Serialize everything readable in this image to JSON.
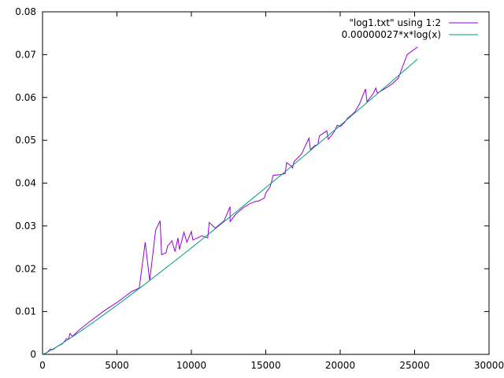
{
  "chart_data": {
    "type": "line",
    "title": "",
    "xlabel": "",
    "ylabel": "",
    "xlim": [
      0,
      30000
    ],
    "ylim": [
      0,
      0.08
    ],
    "grid": false,
    "legend_position": "top-right",
    "x_ticks": [
      {
        "value": 0,
        "label": "0"
      },
      {
        "value": 5000,
        "label": "5000"
      },
      {
        "value": 10000,
        "label": "10000"
      },
      {
        "value": 15000,
        "label": "15000"
      },
      {
        "value": 20000,
        "label": "20000"
      },
      {
        "value": 25000,
        "label": "25000"
      },
      {
        "value": 30000,
        "label": "30000"
      }
    ],
    "y_ticks": [
      {
        "value": 0,
        "label": "0"
      },
      {
        "value": 0.01,
        "label": "0.01"
      },
      {
        "value": 0.02,
        "label": "0.02"
      },
      {
        "value": 0.03,
        "label": "0.03"
      },
      {
        "value": 0.04,
        "label": "0.04"
      },
      {
        "value": 0.05,
        "label": "0.05"
      },
      {
        "value": 0.06,
        "label": "0.06"
      },
      {
        "value": 0.07,
        "label": "0.07"
      },
      {
        "value": 0.08,
        "label": "0.08"
      }
    ],
    "series": [
      {
        "name": "\"log1.txt\" using 1:2",
        "color": "#9400d3",
        "kind": "data",
        "points": [
          [
            0,
            0.0
          ],
          [
            300,
            0.0004
          ],
          [
            500,
            0.0012
          ],
          [
            700,
            0.0011
          ],
          [
            1000,
            0.0019
          ],
          [
            1300,
            0.0024
          ],
          [
            1500,
            0.0031
          ],
          [
            1600,
            0.0037
          ],
          [
            1750,
            0.0036
          ],
          [
            1850,
            0.0049
          ],
          [
            2000,
            0.0042
          ],
          [
            2500,
            0.0058
          ],
          [
            3000,
            0.0072
          ],
          [
            3500,
            0.0085
          ],
          [
            4000,
            0.0098
          ],
          [
            4500,
            0.011
          ],
          [
            5000,
            0.0121
          ],
          [
            5500,
            0.0134
          ],
          [
            6000,
            0.0147
          ],
          [
            6500,
            0.0155
          ],
          [
            6900,
            0.0262
          ],
          [
            7200,
            0.0172
          ],
          [
            7600,
            0.029
          ],
          [
            7900,
            0.0312
          ],
          [
            8000,
            0.0233
          ],
          [
            8300,
            0.0237
          ],
          [
            8400,
            0.0253
          ],
          [
            8700,
            0.0265
          ],
          [
            8900,
            0.024
          ],
          [
            9100,
            0.0272
          ],
          [
            9200,
            0.0245
          ],
          [
            9500,
            0.0285
          ],
          [
            9700,
            0.0262
          ],
          [
            10000,
            0.0287
          ],
          [
            10100,
            0.0267
          ],
          [
            10600,
            0.0275
          ],
          [
            10700,
            0.0277
          ],
          [
            11100,
            0.0272
          ],
          [
            11200,
            0.0308
          ],
          [
            11600,
            0.0295
          ],
          [
            12200,
            0.0312
          ],
          [
            12600,
            0.0345
          ],
          [
            12600,
            0.031
          ],
          [
            13000,
            0.0328
          ],
          [
            13500,
            0.0343
          ],
          [
            14000,
            0.0353
          ],
          [
            14300,
            0.0357
          ],
          [
            14500,
            0.0358
          ],
          [
            14900,
            0.0365
          ],
          [
            15000,
            0.0377
          ],
          [
            15300,
            0.0392
          ],
          [
            15500,
            0.0418
          ],
          [
            16000,
            0.042
          ],
          [
            16300,
            0.0422
          ],
          [
            16400,
            0.0448
          ],
          [
            16700,
            0.044
          ],
          [
            16800,
            0.0435
          ],
          [
            16900,
            0.045
          ],
          [
            17400,
            0.0468
          ],
          [
            17900,
            0.0505
          ],
          [
            18000,
            0.0478
          ],
          [
            18300,
            0.0488
          ],
          [
            18500,
            0.049
          ],
          [
            18600,
            0.051
          ],
          [
            19100,
            0.0522
          ],
          [
            19200,
            0.0502
          ],
          [
            19600,
            0.052
          ],
          [
            19800,
            0.0535
          ],
          [
            20000,
            0.0532
          ],
          [
            20300,
            0.0542
          ],
          [
            20500,
            0.0552
          ],
          [
            20800,
            0.056
          ],
          [
            21000,
            0.0567
          ],
          [
            21300,
            0.0585
          ],
          [
            21700,
            0.062
          ],
          [
            21800,
            0.059
          ],
          [
            22200,
            0.0608
          ],
          [
            22400,
            0.0622
          ],
          [
            22500,
            0.061
          ],
          [
            23200,
            0.0625
          ],
          [
            23500,
            0.0632
          ],
          [
            23900,
            0.0645
          ],
          [
            24500,
            0.07
          ],
          [
            25200,
            0.0718
          ]
        ]
      },
      {
        "name": "0.00000027*x*log(x)",
        "color": "#009e73",
        "kind": "function",
        "coefficient": 2.7e-07,
        "x_range": [
          1,
          25200
        ],
        "samples": 120
      }
    ]
  }
}
